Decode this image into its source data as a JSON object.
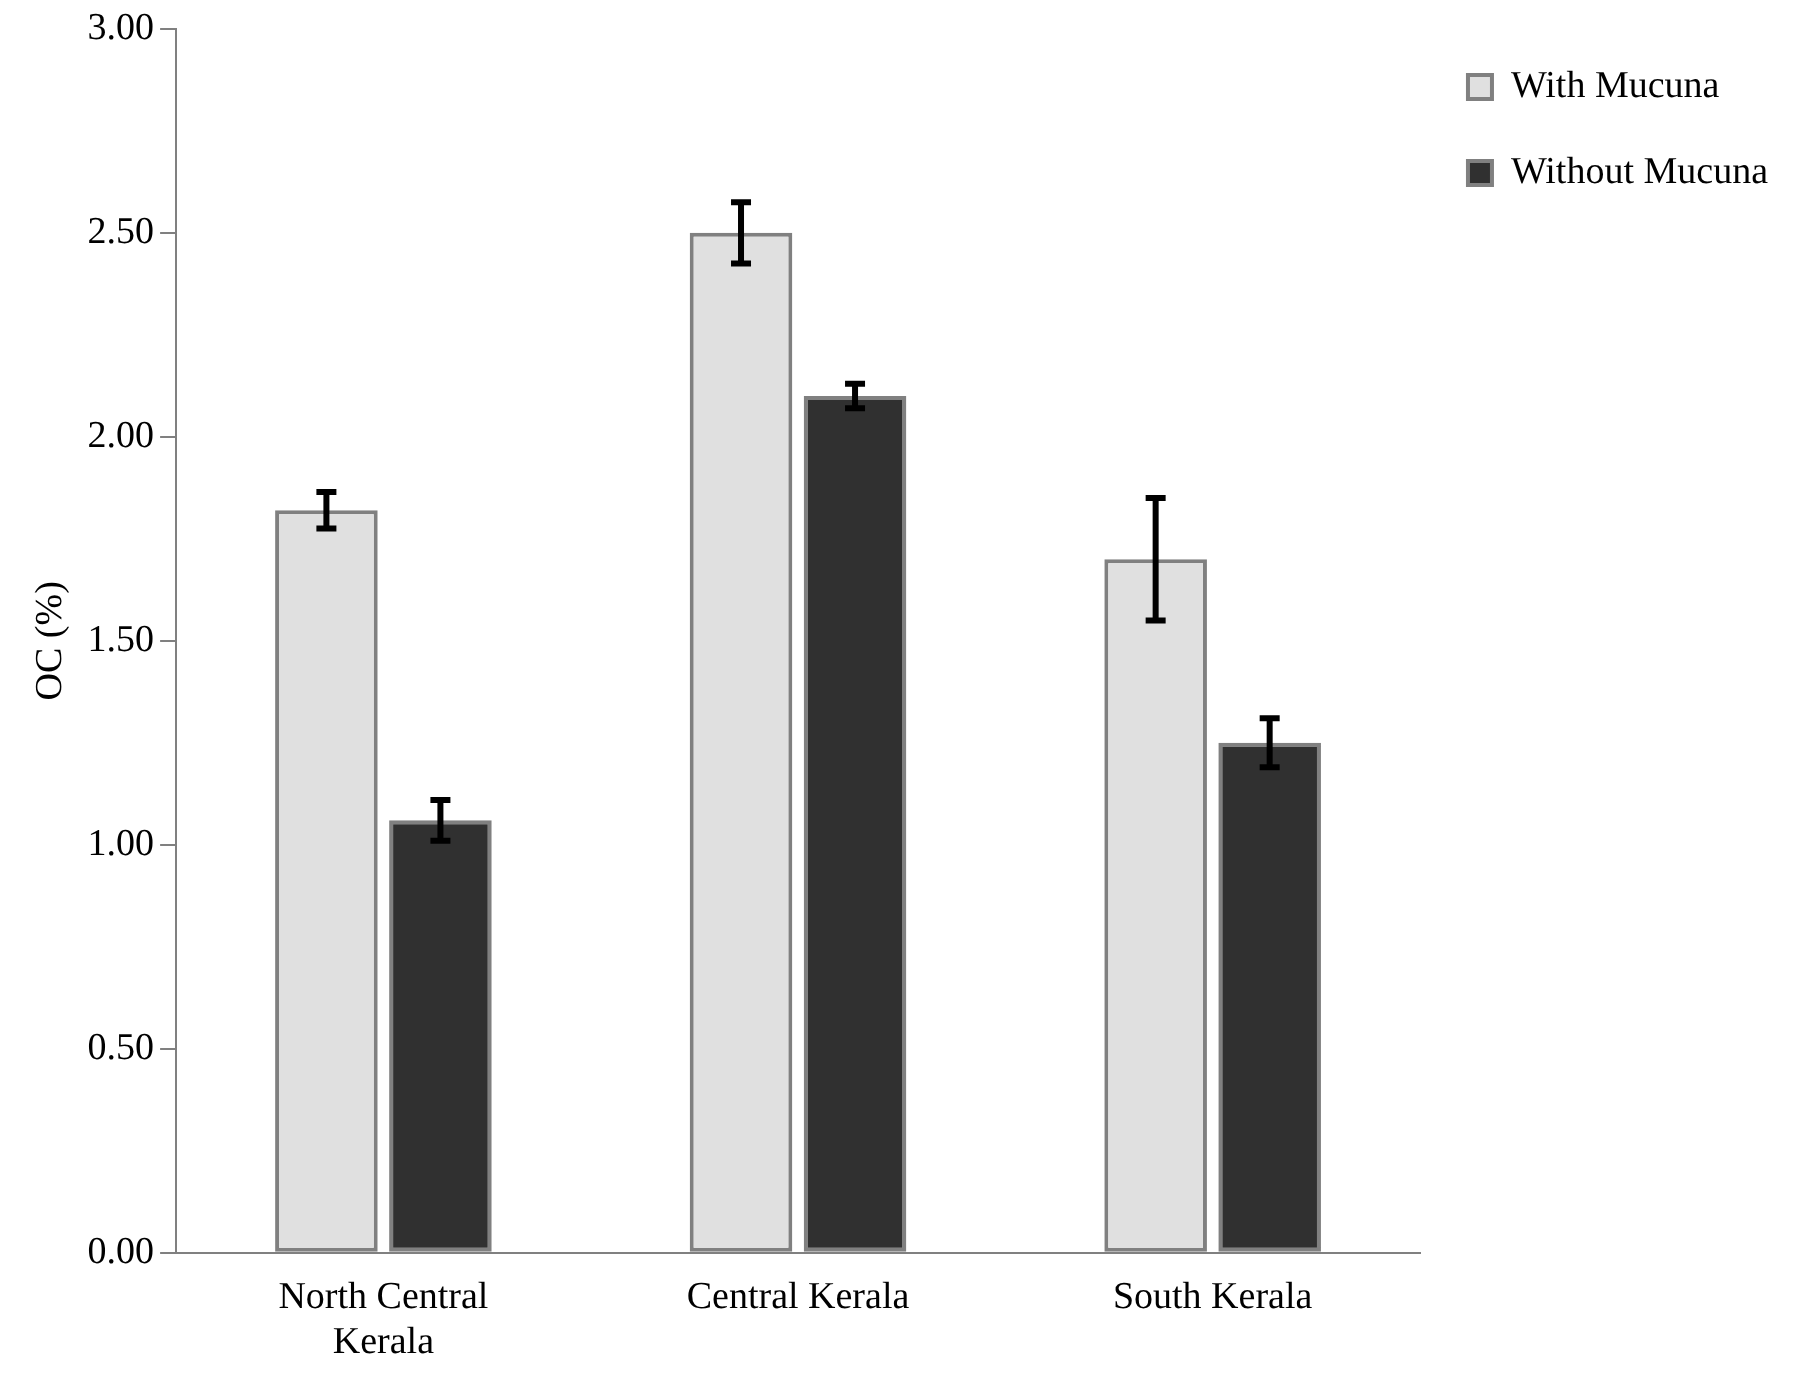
{
  "chart_data": {
    "type": "bar",
    "ylabel": "OC (%)",
    "categories": [
      "North Central Kerala",
      "Central Kerala",
      "South Kerala"
    ],
    "series": [
      {
        "name": "With Mucuna",
        "color": "#e0e0e0",
        "values": [
          1.82,
          2.5,
          1.7
        ],
        "errors": [
          0.045,
          0.075,
          0.15
        ]
      },
      {
        "name": "Without Mucuna",
        "color": "#303030",
        "values": [
          1.06,
          2.1,
          1.25
        ],
        "errors": [
          0.05,
          0.03,
          0.06
        ]
      }
    ],
    "ylim": [
      0,
      3
    ],
    "yticks": [
      {
        "value": 0,
        "label": "0.00"
      },
      {
        "value": 0.5,
        "label": "0.50"
      },
      {
        "value": 1,
        "label": "1.00"
      },
      {
        "value": 1.5,
        "label": "1.50"
      },
      {
        "value": 2,
        "label": "2.00"
      },
      {
        "value": 2.5,
        "label": "2.50"
      },
      {
        "value": 3,
        "label": "3.00"
      }
    ],
    "grid": false,
    "legend": "top right"
  }
}
